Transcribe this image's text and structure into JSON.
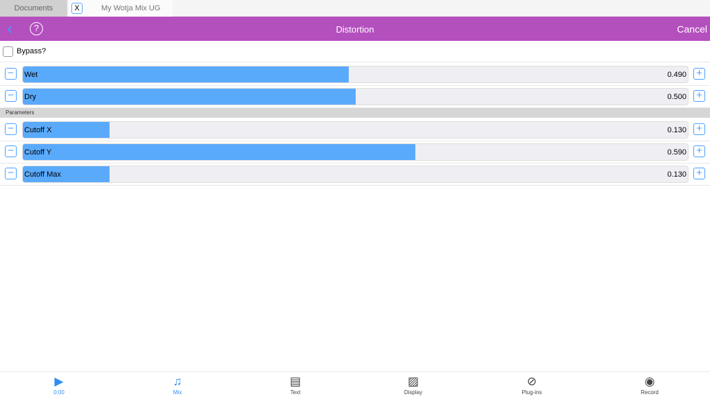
{
  "tabs": {
    "documents": "Documents",
    "close": "X",
    "current": "My Wotja Mix UG"
  },
  "nav": {
    "title": "Distortion",
    "cancel": "Cancel",
    "back": "‹",
    "help": "?"
  },
  "bypass": {
    "label": "Bypass?",
    "checked": false
  },
  "section": "Parameters",
  "sliders": [
    {
      "name": "Wet",
      "value": "0.490",
      "fraction": 0.49
    },
    {
      "name": "Dry",
      "value": "0.500",
      "fraction": 0.5
    },
    {
      "name": "Cutoff X",
      "value": "0.130",
      "fraction": 0.13
    },
    {
      "name": "Cutoff Y",
      "value": "0.590",
      "fraction": 0.59
    },
    {
      "name": "Cutoff Max",
      "value": "0.130",
      "fraction": 0.13
    }
  ],
  "toolbar": [
    {
      "label": "0:00",
      "icon": "play-icon",
      "glyph": "▶",
      "active": true
    },
    {
      "label": "Mix",
      "icon": "music-note-icon",
      "glyph": "♫",
      "active": true
    },
    {
      "label": "Text",
      "icon": "document-icon",
      "glyph": "▤",
      "active": false
    },
    {
      "label": "Display",
      "icon": "image-icon",
      "glyph": "▨",
      "active": false
    },
    {
      "label": "Plug-ins",
      "icon": "plug-icon",
      "glyph": "⊘",
      "active": false
    },
    {
      "label": "Record",
      "icon": "record-icon",
      "glyph": "◉",
      "active": false
    }
  ],
  "colors": {
    "nav": "#b44fbe",
    "accent": "#5aaafc"
  }
}
